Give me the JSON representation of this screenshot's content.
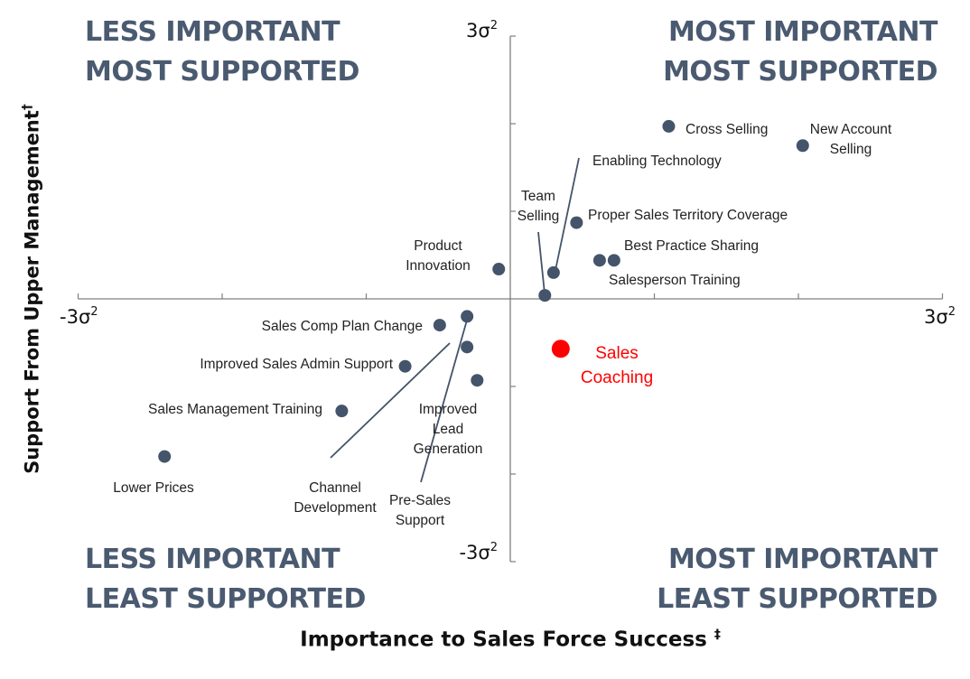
{
  "chart_data": {
    "type": "scatter",
    "xlabel": "Importance to Sales Force Success",
    "xlabel_mark": "‡",
    "ylabel": "Support From Upper Management",
    "ylabel_mark": "†",
    "xlim": [
      -3,
      3
    ],
    "ylim": [
      -3,
      3
    ],
    "tick_labels": {
      "x_min": "-3σ2",
      "x_max": "3σ2",
      "y_min": "-3σ2",
      "y_max": "3σ2"
    },
    "quadrants": {
      "top_left": [
        "LESS IMPORTANT",
        "MOST SUPPORTED"
      ],
      "top_right": [
        "MOST IMPORTANT",
        "MOST SUPPORTED"
      ],
      "bottom_left": [
        "LESS IMPORTANT",
        "LEAST SUPPORTED"
      ],
      "bottom_right": [
        "MOST IMPORTANT",
        "LEAST SUPPORTED"
      ]
    },
    "colors": {
      "point": "#44546a",
      "highlight": "#ff0000",
      "axis": "#7f7f7f",
      "quadrant_text": "#4a5a70"
    },
    "points": [
      {
        "label": [
          "Cross Selling"
        ],
        "x": 1.1,
        "y": 1.97,
        "anchor": "right"
      },
      {
        "label": [
          "New Account",
          "Selling"
        ],
        "x": 2.03,
        "y": 1.75,
        "anchor": "above-right"
      },
      {
        "label": [
          "Enabling Technology"
        ],
        "x": 0.3,
        "y": 0.3,
        "anchor": "leader-top"
      },
      {
        "label": [
          "Proper Sales Territory Coverage"
        ],
        "x": 0.46,
        "y": 0.87,
        "anchor": "right"
      },
      {
        "label": [
          "Team",
          "Selling"
        ],
        "x": 0.24,
        "y": 0.04,
        "anchor": "leader-top"
      },
      {
        "label": [
          "Best Practice Sharing"
        ],
        "x": 0.62,
        "y": 0.44,
        "anchor": "above-right"
      },
      {
        "label": [
          "Salesperson Training"
        ],
        "x": 0.72,
        "y": 0.44,
        "anchor": "below-right"
      },
      {
        "label": [
          "Product",
          "Innovation"
        ],
        "x": -0.08,
        "y": 0.34,
        "anchor": "above-left"
      },
      {
        "label": [
          "Sales Comp Plan Change"
        ],
        "x": -0.49,
        "y": -0.3,
        "anchor": "left"
      },
      {
        "label": [
          "Channel",
          "Development"
        ],
        "x": -0.3,
        "y": -0.55,
        "anchor": "leader-bottom"
      },
      {
        "label": [
          "Pre-Sales",
          "Support"
        ],
        "x": -0.3,
        "y": -0.2,
        "anchor": "leader-bottom"
      },
      {
        "label": [
          "Improved  Sales Admin Support"
        ],
        "x": -0.73,
        "y": -0.77,
        "anchor": "left"
      },
      {
        "label": [
          "Improved",
          "Lead",
          "Generation"
        ],
        "x": -0.23,
        "y": -0.93,
        "anchor": "below"
      },
      {
        "label": [
          "Sales Management Training"
        ],
        "x": -1.17,
        "y": -1.28,
        "anchor": "left"
      },
      {
        "label": [
          "Lower Prices"
        ],
        "x": -2.4,
        "y": -1.8,
        "anchor": "below"
      },
      {
        "label": [
          "Sales",
          "Coaching"
        ],
        "x": 0.35,
        "y": -0.57,
        "anchor": "right",
        "highlight": true
      }
    ]
  }
}
